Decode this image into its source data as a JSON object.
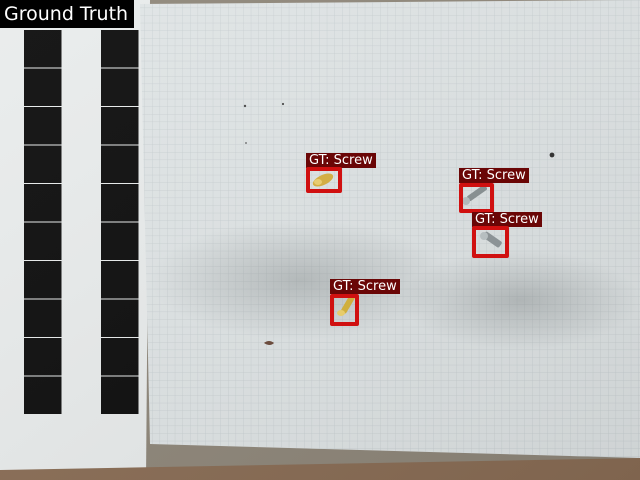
{
  "overlay": {
    "title": "Ground Truth",
    "detections": [
      {
        "label": "GT: Screw",
        "object": "brass-screw"
      },
      {
        "label": "GT: Screw",
        "object": "steel-screw"
      },
      {
        "label": "GT: Screw",
        "object": "steel-screw"
      },
      {
        "label": "GT: Screw",
        "object": "brass-screw"
      }
    ]
  },
  "colors": {
    "box": "#d01010",
    "label_bg": "#6a0606",
    "paper": "#dfe4e5",
    "grid": "#c3cbce"
  }
}
